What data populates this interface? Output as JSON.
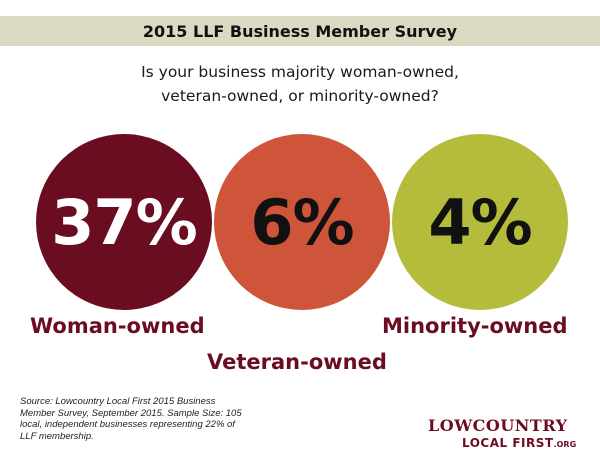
{
  "title": "2015 LLF Business Member Survey",
  "question": {
    "line1": "Is your business majority woman-owned,",
    "line2": "veteran-owned, or minority-owned?"
  },
  "colors": {
    "title_bar": "#dcd9c3",
    "maroon": "#6b0d21",
    "orange": "#cf553a",
    "olive": "#b5bb3a"
  },
  "chart_data": {
    "type": "bubble-percent",
    "categories": [
      "Woman-owned",
      "Veteran-owned",
      "Minority-owned"
    ],
    "values": [
      37,
      6,
      4
    ],
    "value_labels": [
      "37%",
      "6%",
      "4%"
    ],
    "unit": "%"
  },
  "source_note": "Source: Lowcountry Local First 2015 Business Member Survey, September 2015. Sample Size: 105 local, independent businesses representing 22% of LLF membership.",
  "logo": {
    "line1": "LOWCOUNTRY",
    "line2": "LOCAL FIRST",
    "suffix": ".ORG"
  }
}
